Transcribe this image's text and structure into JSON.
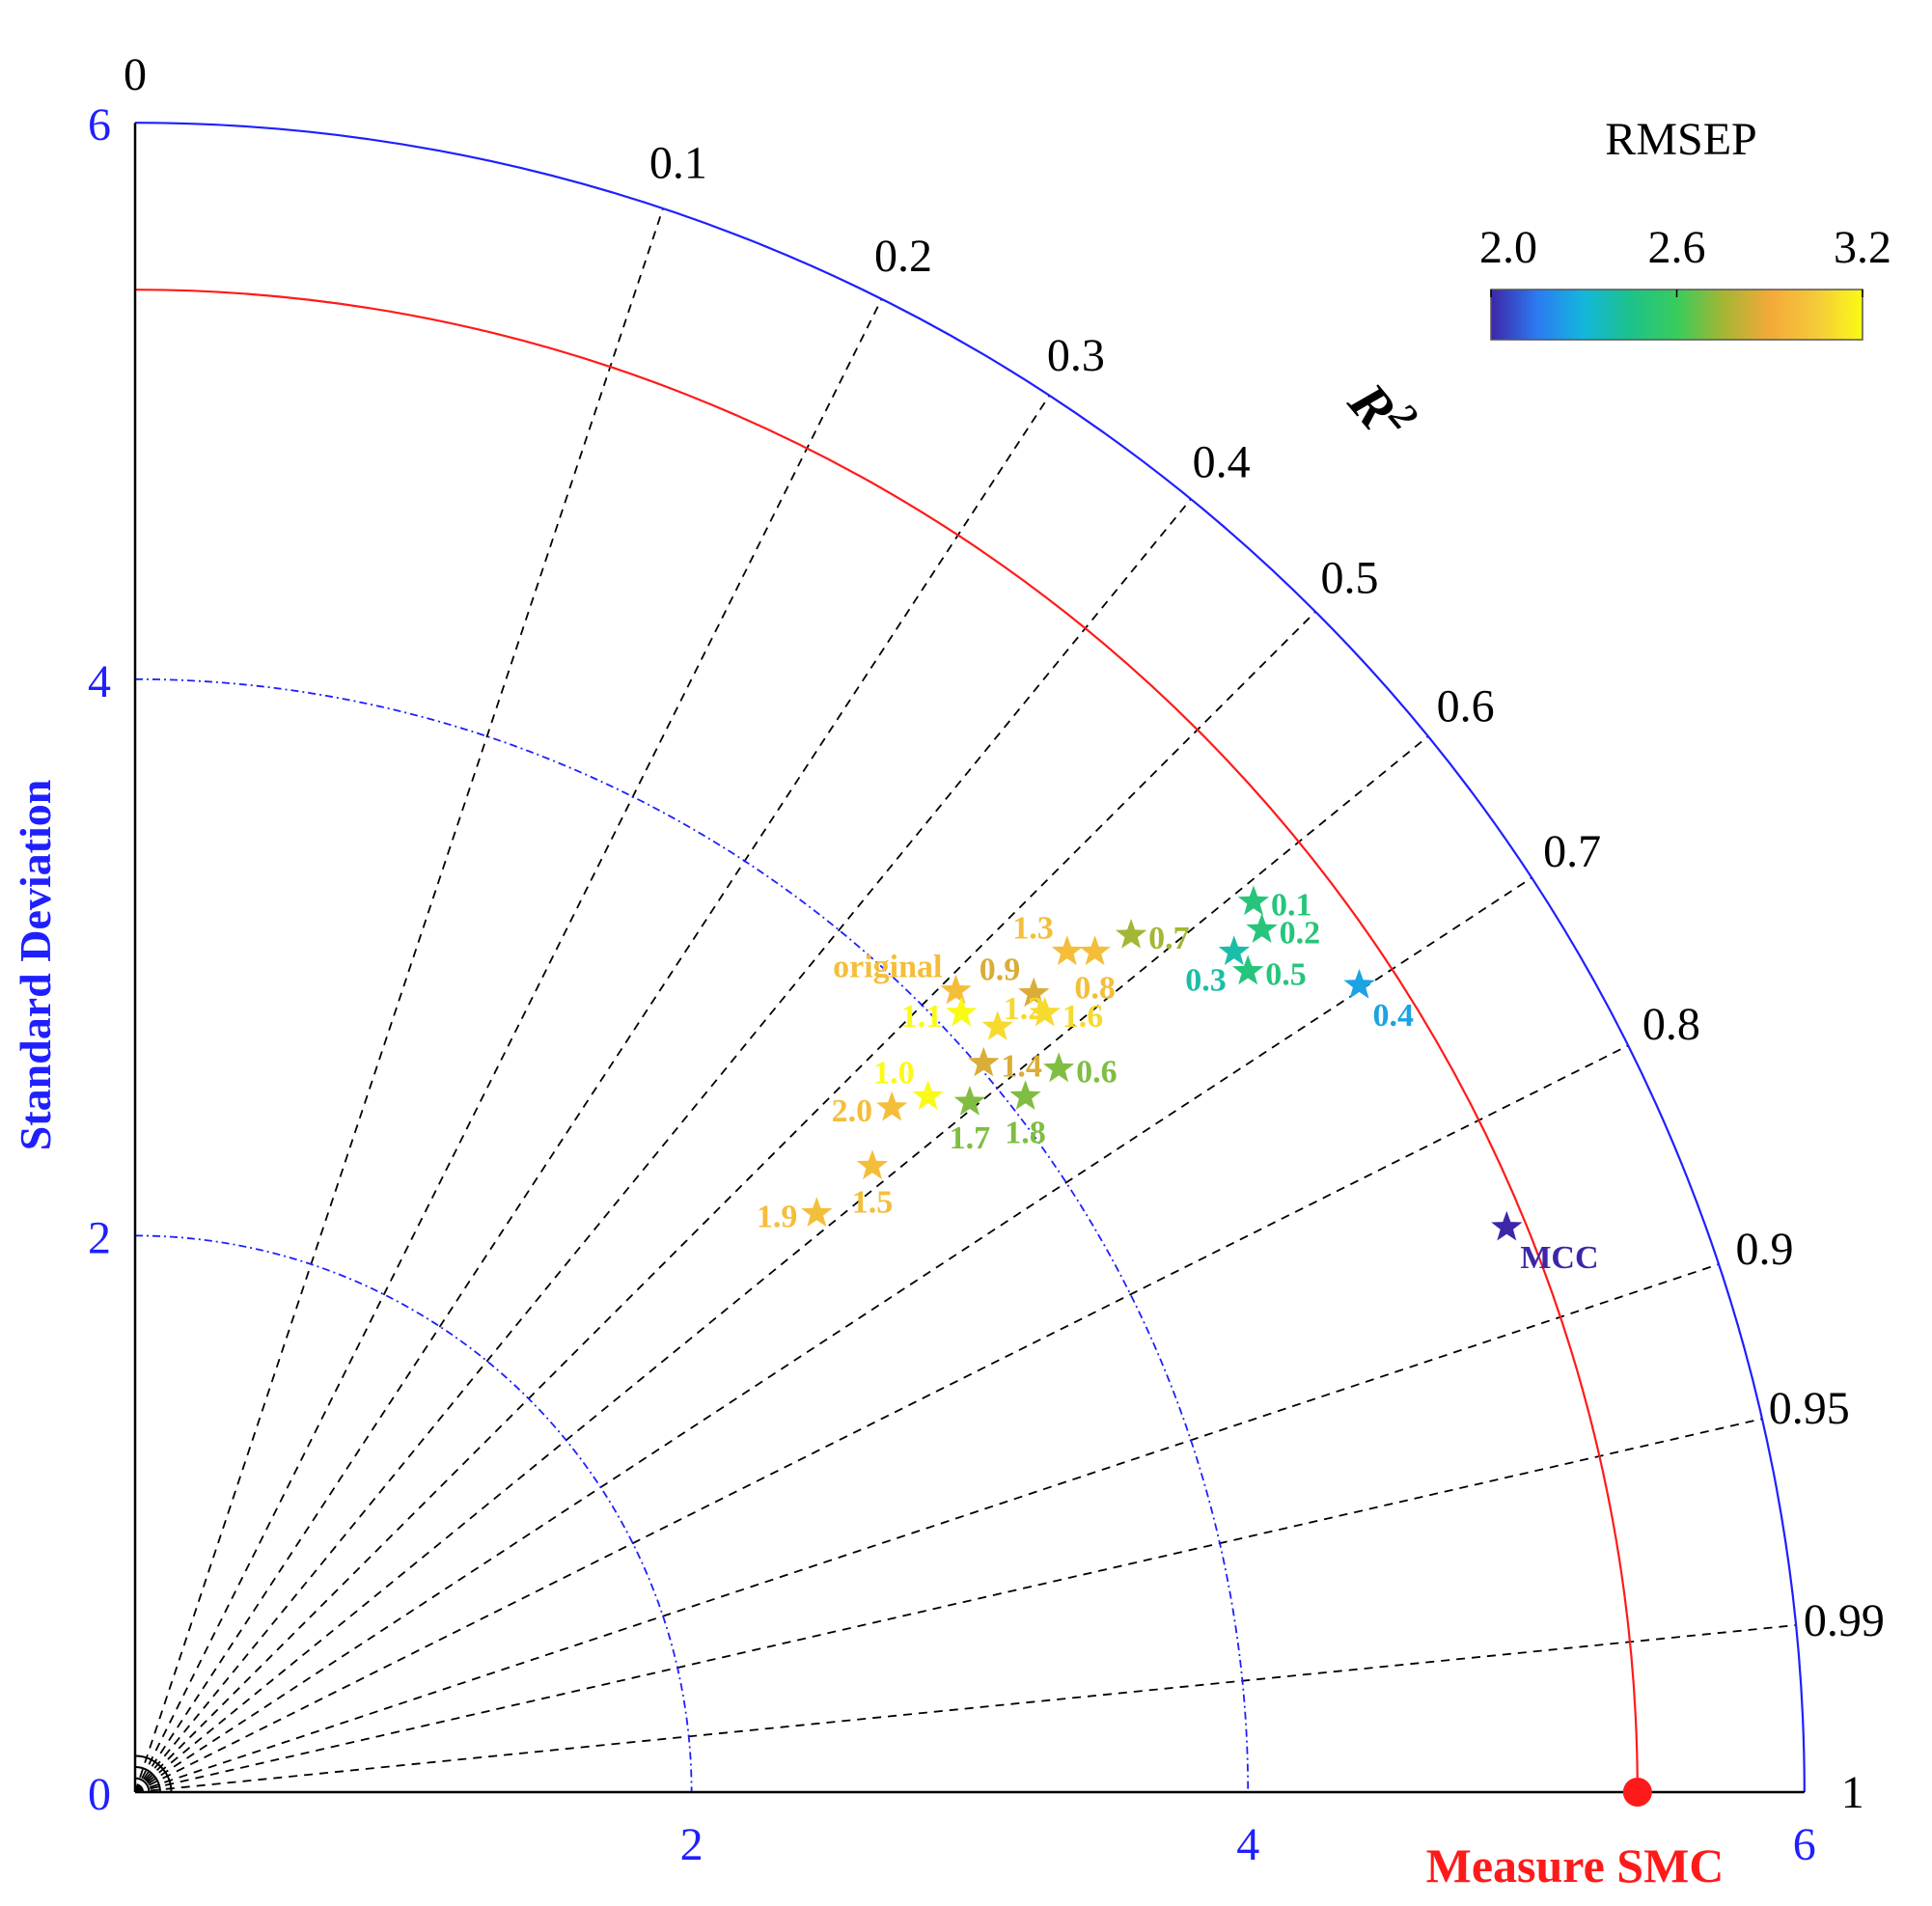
{
  "chart_data": {
    "type": "scatter",
    "subtype": "taylor-diagram",
    "y_axis_label": "Standard Deviation",
    "correlation_axis_label": "R²",
    "correlation_axis_label_base": "R",
    "correlation_axis_label_sup": "2",
    "reference_label": "Measure SMC",
    "reference_std": 5.4,
    "rmax": 6,
    "std_ticks": [
      {
        "value": 0,
        "label": "0"
      },
      {
        "value": 2,
        "label": "2"
      },
      {
        "value": 4,
        "label": "4"
      },
      {
        "value": 6,
        "label": "6"
      }
    ],
    "std_rings": [
      2,
      4
    ],
    "r2_ticks": [
      {
        "value": 0,
        "label": "0"
      },
      {
        "value": 0.1,
        "label": "0.1"
      },
      {
        "value": 0.2,
        "label": "0.2"
      },
      {
        "value": 0.3,
        "label": "0.3"
      },
      {
        "value": 0.4,
        "label": "0.4"
      },
      {
        "value": 0.5,
        "label": "0.5"
      },
      {
        "value": 0.6,
        "label": "0.6"
      },
      {
        "value": 0.7,
        "label": "0.7"
      },
      {
        "value": 0.8,
        "label": "0.8"
      },
      {
        "value": 0.9,
        "label": "0.9"
      },
      {
        "value": 0.95,
        "label": "0.95"
      },
      {
        "value": 0.99,
        "label": "0.99"
      },
      {
        "value": 1,
        "label": "1"
      }
    ],
    "colorbar": {
      "title": "RMSEP",
      "min": 2.0,
      "max": 3.2,
      "tick_labels": [
        "2.0",
        "2.6",
        "3.2"
      ],
      "colors": [
        "#3e26a8",
        "#2c7bf2",
        "#13b7dc",
        "#1dc28b",
        "#39cc5c",
        "#a4b634",
        "#f3a938",
        "#f5c93b",
        "#f9fb14"
      ]
    },
    "points": [
      {
        "label": "original",
        "x": 2.95,
        "y": 2.88,
        "rmsep": 3.0,
        "label_pos": "top-left"
      },
      {
        "label": "0.1",
        "x": 4.02,
        "y": 3.2,
        "rmsep": 2.5,
        "label_pos": "right"
      },
      {
        "label": "0.2",
        "x": 4.05,
        "y": 3.1,
        "rmsep": 2.5,
        "label_pos": "right"
      },
      {
        "label": "0.3",
        "x": 3.95,
        "y": 3.02,
        "rmsep": 2.4,
        "label_pos": "below-left"
      },
      {
        "label": "0.4",
        "x": 4.4,
        "y": 2.9,
        "rmsep": 2.25,
        "label_pos": "below-right"
      },
      {
        "label": "0.5",
        "x": 4.0,
        "y": 2.95,
        "rmsep": 2.5,
        "label_pos": "right"
      },
      {
        "label": "0.6",
        "x": 3.32,
        "y": 2.6,
        "rmsep": 2.7,
        "label_pos": "right"
      },
      {
        "label": "0.7",
        "x": 3.58,
        "y": 3.08,
        "rmsep": 2.75,
        "label_pos": "right"
      },
      {
        "label": "0.8",
        "x": 3.45,
        "y": 3.02,
        "rmsep": 3.0,
        "label_pos": "below"
      },
      {
        "label": "0.9",
        "x": 3.23,
        "y": 2.87,
        "rmsep": 2.85,
        "label_pos": "top-left"
      },
      {
        "label": "1.0",
        "x": 2.85,
        "y": 2.5,
        "rmsep": 3.2,
        "label_pos": "top-left"
      },
      {
        "label": "1.1",
        "x": 2.97,
        "y": 2.8,
        "rmsep": 3.2,
        "label_pos": "left"
      },
      {
        "label": "1.2",
        "x": 3.1,
        "y": 2.75,
        "rmsep": 3.1,
        "label_pos": "top"
      },
      {
        "label": "1.3",
        "x": 3.35,
        "y": 3.02,
        "rmsep": 3.0,
        "label_pos": "top-left"
      },
      {
        "label": "1.4",
        "x": 3.05,
        "y": 2.62,
        "rmsep": 2.85,
        "label_pos": "right"
      },
      {
        "label": "1.5",
        "x": 2.65,
        "y": 2.25,
        "rmsep": 3.0,
        "label_pos": "below"
      },
      {
        "label": "1.6",
        "x": 3.27,
        "y": 2.8,
        "rmsep": 3.1,
        "label_pos": "right"
      },
      {
        "label": "1.7",
        "x": 3.0,
        "y": 2.48,
        "rmsep": 2.7,
        "label_pos": "below"
      },
      {
        "label": "1.8",
        "x": 3.2,
        "y": 2.5,
        "rmsep": 2.7,
        "label_pos": "below"
      },
      {
        "label": "1.9",
        "x": 2.45,
        "y": 2.08,
        "rmsep": 3.0,
        "label_pos": "left"
      },
      {
        "label": "2.0",
        "x": 2.72,
        "y": 2.46,
        "rmsep": 3.0,
        "label_pos": "left"
      },
      {
        "label": "MCC",
        "x": 4.93,
        "y": 2.03,
        "rmsep": 2.0,
        "label_pos": "below-right"
      }
    ],
    "colors": {
      "axis_blue": "#1f1fff",
      "reference_red": "#ff1a1a",
      "grid_dash": "#000000",
      "text": "#000000"
    }
  }
}
